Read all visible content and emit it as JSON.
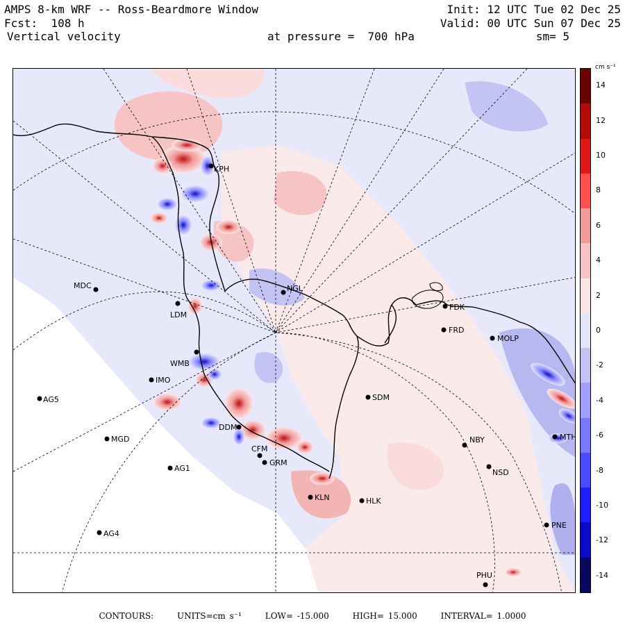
{
  "header": {
    "model": "AMPS 8-km WRF -- Ross-Beardmore Window",
    "fcst": "Fcst:  108 h",
    "variable": "Vertical velocity",
    "pressure": "at pressure =  700 hPa",
    "init": "Init: 12 UTC Tue 02 Dec 25",
    "valid": "Valid: 00 UTC Sun 07 Dec 25",
    "smoothing": "sm= 5"
  },
  "colorbar": {
    "units": "cm s⁻¹",
    "ticks": [
      "14",
      "12",
      "10",
      "8",
      "6",
      "4",
      "2",
      "0",
      "-2",
      "-4",
      "-6",
      "-8",
      "-10",
      "-12",
      "-14"
    ],
    "range": [
      -15,
      15
    ],
    "colors": [
      "#08085e",
      "#0a0ac8",
      "#1e1eff",
      "#4a4aff",
      "#7878ff",
      "#a0a0ff",
      "#c4c4f4",
      "#e4e4fa",
      "#fbe4e4",
      "#f6c4c4",
      "#f09a9a",
      "#ff5050",
      "#e01818",
      "#b40a0a",
      "#6a0404"
    ]
  },
  "stations": [
    {
      "code": "KPH"
    },
    {
      "code": "MDC"
    },
    {
      "code": "NGL"
    },
    {
      "code": "FDK"
    },
    {
      "code": "LDM"
    },
    {
      "code": "FRD"
    },
    {
      "code": "MOLP"
    },
    {
      "code": "WMB"
    },
    {
      "code": "IMO"
    },
    {
      "code": "AG5"
    },
    {
      "code": "SDM"
    },
    {
      "code": "DDM"
    },
    {
      "code": "MGD"
    },
    {
      "code": "NBY"
    },
    {
      "code": "MTH"
    },
    {
      "code": "CFM"
    },
    {
      "code": "GRM"
    },
    {
      "code": "AG1"
    },
    {
      "code": "NSD"
    },
    {
      "code": "KLN"
    },
    {
      "code": "HLK"
    },
    {
      "code": "AG4"
    },
    {
      "code": "PNE"
    },
    {
      "code": "PHU"
    }
  ],
  "footer": {
    "contours": "CONTOURS:",
    "units": "UNITS=cm s⁻¹",
    "low": "LOW= -15.000",
    "high": "HIGH= 15.000",
    "interval": "INTERVAL= 1.0000"
  }
}
